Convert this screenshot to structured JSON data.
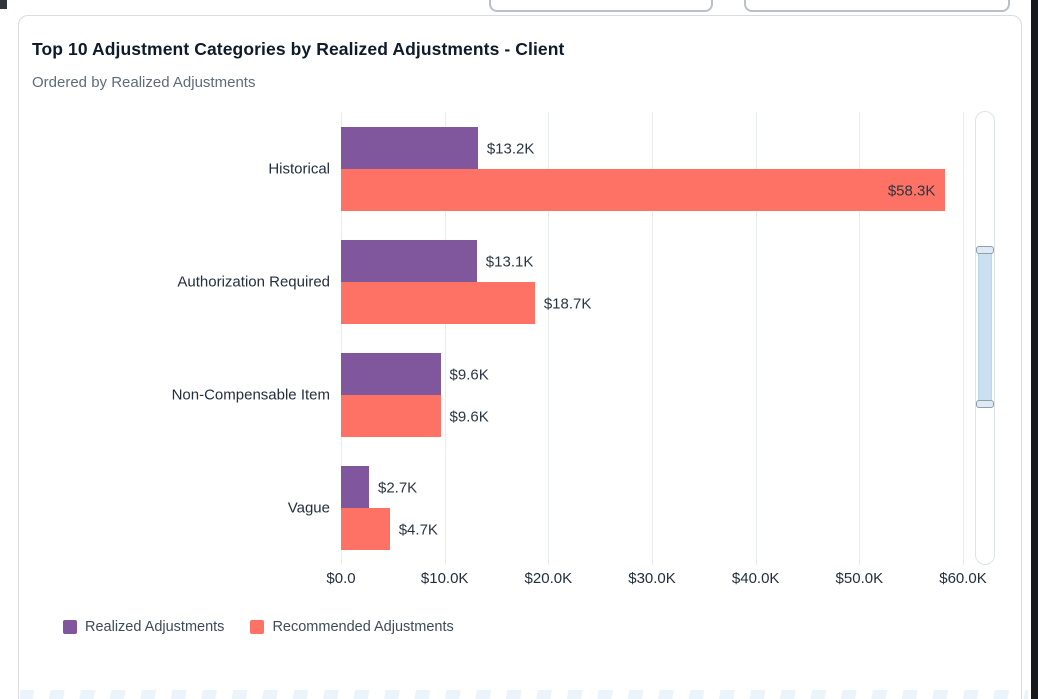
{
  "top_bar": {
    "left_input": {
      "value": "",
      "placeholder": ""
    },
    "right_input": {
      "value": "",
      "placeholder": ""
    }
  },
  "panel": {
    "title": "Top 10 Adjustment Categories by Realized Adjustments - Client",
    "subtitle": "Ordered by Realized Adjustments"
  },
  "chart_data": {
    "type": "bar",
    "orientation": "horizontal",
    "title": "Top 10 Adjustment Categories by Realized Adjustments - Client",
    "subtitle": "Ordered by Realized Adjustments",
    "categories": [
      "Historical",
      "Authorization Required",
      "Non-Compensable Item",
      "Vague"
    ],
    "series": [
      {
        "name": "Realized Adjustments",
        "color": "#80579d",
        "values": [
          13200,
          13100,
          9600,
          2700
        ],
        "value_labels": [
          "$13.2K",
          "$13.1K",
          "$9.6K",
          "$2.7K"
        ]
      },
      {
        "name": "Recommended Adjustments",
        "color": "#fd7264",
        "values": [
          58300,
          18700,
          9600,
          4700
        ],
        "value_labels": [
          "$58.3K",
          "$18.7K",
          "$9.6K",
          "$4.7K"
        ]
      }
    ],
    "x_axis": {
      "min": 0,
      "max": 60000,
      "ticks": [
        0,
        10000,
        20000,
        30000,
        40000,
        50000,
        60000
      ],
      "tick_labels": [
        "$0.0",
        "$10.0K",
        "$20.0K",
        "$30.0K",
        "$40.0K",
        "$50.0K",
        "$60.0K"
      ]
    },
    "grid": "vertical",
    "legend_position": "bottom-left"
  },
  "legend": {
    "items": [
      {
        "label": "Realized Adjustments",
        "color": "#80579d"
      },
      {
        "label": "Recommended Adjustments",
        "color": "#fd7264"
      }
    ]
  },
  "scrollbar": {
    "orientation": "vertical",
    "thumb_color": "#c9e0f1"
  }
}
